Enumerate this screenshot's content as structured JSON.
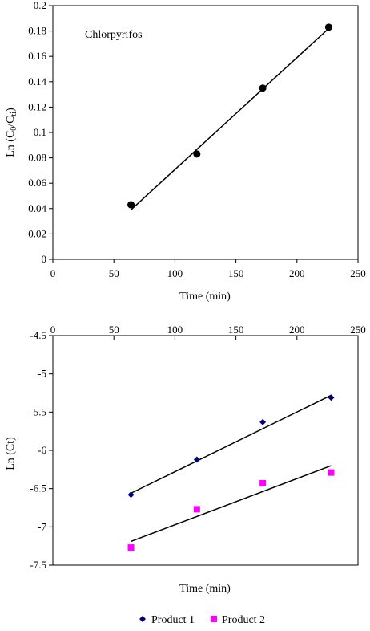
{
  "chart_data": [
    {
      "type": "scatter",
      "title": "",
      "xlabel": "Time (min)",
      "ylabel": "Ln (C0/Cti)",
      "ylabel_parts": {
        "main": "Ln (C",
        "sub1": "0",
        "mid": "/C",
        "sub2": "ti",
        "end": ")"
      },
      "annotation": "Chlorpyrifos",
      "xlim": [
        0,
        250
      ],
      "ylim": [
        0,
        0.2
      ],
      "xticks": [
        0,
        50,
        100,
        150,
        200,
        250
      ],
      "xtick_labels": [
        "0",
        "50",
        "100",
        "150",
        "200",
        "250"
      ],
      "yticks": [
        0,
        0.02,
        0.04,
        0.06,
        0.08,
        0.1,
        0.12,
        0.14,
        0.16,
        0.18,
        0.2
      ],
      "ytick_labels": [
        "0",
        "0.02",
        "0.04",
        "0.06",
        "0.08",
        "0.1",
        "0.12",
        "0.14",
        "0.16",
        "0.18",
        "0.2"
      ],
      "grid": false,
      "series": [
        {
          "marker": "circle",
          "color": "#000000",
          "x": [
            64,
            118,
            172,
            226
          ],
          "y": [
            0.043,
            0.083,
            0.135,
            0.183
          ],
          "trendline": {
            "x": [
              64,
              226
            ],
            "y": [
              0.039,
              0.182
            ]
          }
        }
      ]
    },
    {
      "type": "scatter",
      "title": "",
      "xlabel": "Time (min)",
      "ylabel": "Ln (Ct)",
      "xlim": [
        0,
        250
      ],
      "ylim": [
        -7.5,
        -4.5
      ],
      "x_axis_position": "top",
      "xticks": [
        0,
        50,
        100,
        150,
        200,
        250
      ],
      "xtick_labels": [
        "0",
        "50",
        "100",
        "150",
        "200",
        "250"
      ],
      "yticks": [
        -4.5,
        -5,
        -5.5,
        -6,
        -6.5,
        -7,
        -7.5
      ],
      "ytick_labels": [
        "-4.5",
        "-5",
        "-5.5",
        "-6",
        "-6.5",
        "-7",
        "-7.5"
      ],
      "grid": false,
      "legend": "bottom",
      "series": [
        {
          "name": "Product 1",
          "marker": "diamond",
          "color": "#000080",
          "x": [
            64,
            118,
            172,
            228
          ],
          "y": [
            -6.58,
            -6.12,
            -5.63,
            -5.31
          ],
          "trendline": {
            "x": [
              64,
              228
            ],
            "y": [
              -6.56,
              -5.28
            ]
          }
        },
        {
          "name": "Product 2",
          "marker": "square",
          "color": "#ff00ff",
          "x": [
            64,
            118,
            172,
            228
          ],
          "y": [
            -7.27,
            -6.77,
            -6.43,
            -6.29
          ],
          "trendline": {
            "x": [
              64,
              228
            ],
            "y": [
              -7.19,
              -6.2
            ]
          }
        }
      ]
    }
  ]
}
